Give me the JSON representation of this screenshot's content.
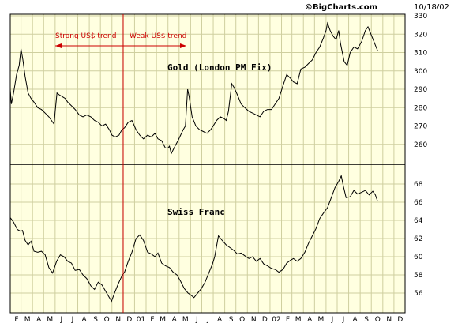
{
  "header": {
    "watermark": "©BigCharts.com",
    "date": "10/18/02"
  },
  "colors": {
    "panel_bg": "#ffffe0",
    "grid": "#cfcf9f",
    "line": "#000000",
    "annotation": "#cc0000",
    "watermark": "#8a8a8a"
  },
  "annotations": {
    "strong": "Strong US$ trend",
    "weak": "Weak US$ trend"
  },
  "x_tick_labels": [
    "F",
    "M",
    "A",
    "M",
    "J",
    "J",
    "A",
    "S",
    "O",
    "N",
    "D",
    "01",
    "F",
    "M",
    "A",
    "M",
    "J",
    "J",
    "A",
    "S",
    "O",
    "N",
    "D",
    "02",
    "F",
    "M",
    "A",
    "M",
    "J",
    "J",
    "A",
    "S",
    "O",
    "N",
    "D"
  ],
  "chart_data": [
    {
      "type": "line",
      "title": "Gold (London PM Fix)",
      "ylim": [
        250,
        330
      ],
      "yticks": [
        260,
        270,
        280,
        290,
        300,
        310,
        320,
        330
      ],
      "x_start": "2000-02-01",
      "x_end": "2002-12-31",
      "series": [
        {
          "name": "",
          "values": [
            [
              "2000-02-01",
              290
            ],
            [
              "2000-02-04",
              282
            ],
            [
              "2000-02-10",
              288
            ],
            [
              "2000-02-18",
              298
            ],
            [
              "2000-02-25",
              303
            ],
            [
              "2000-03-01",
              312
            ],
            [
              "2000-03-06",
              306
            ],
            [
              "2000-03-12",
              297
            ],
            [
              "2000-03-20",
              288
            ],
            [
              "2000-03-28",
              285
            ],
            [
              "2000-04-05",
              283
            ],
            [
              "2000-04-15",
              280
            ],
            [
              "2000-04-25",
              279
            ],
            [
              "2000-05-05",
              277
            ],
            [
              "2000-05-15",
              275
            ],
            [
              "2000-05-22",
              273
            ],
            [
              "2000-05-29",
              271
            ],
            [
              "2000-06-01",
              278
            ],
            [
              "2000-06-06",
              288
            ],
            [
              "2000-06-12",
              287
            ],
            [
              "2000-06-20",
              286
            ],
            [
              "2000-06-28",
              285
            ],
            [
              "2000-07-05",
              283
            ],
            [
              "2000-07-15",
              281
            ],
            [
              "2000-07-25",
              279
            ],
            [
              "2000-08-05",
              276
            ],
            [
              "2000-08-15",
              275
            ],
            [
              "2000-08-25",
              276
            ],
            [
              "2000-09-05",
              275
            ],
            [
              "2000-09-15",
              273
            ],
            [
              "2000-09-25",
              272
            ],
            [
              "2000-10-05",
              270
            ],
            [
              "2000-10-15",
              271
            ],
            [
              "2000-10-25",
              268
            ],
            [
              "2000-11-01",
              265
            ],
            [
              "2000-11-10",
              264
            ],
            [
              "2000-11-20",
              265
            ],
            [
              "2000-11-28",
              268
            ],
            [
              "2000-12-05",
              269
            ],
            [
              "2000-12-15",
              272
            ],
            [
              "2000-12-25",
              273
            ],
            [
              "2001-01-05",
              268
            ],
            [
              "2001-01-15",
              265
            ],
            [
              "2001-01-25",
              263
            ],
            [
              "2001-02-05",
              265
            ],
            [
              "2001-02-15",
              264
            ],
            [
              "2001-02-25",
              266
            ],
            [
              "2001-03-05",
              263
            ],
            [
              "2001-03-15",
              262
            ],
            [
              "2001-03-25",
              258
            ],
            [
              "2001-04-01",
              258
            ],
            [
              "2001-04-05",
              259
            ],
            [
              "2001-04-10",
              255
            ],
            [
              "2001-04-20",
              259
            ],
            [
              "2001-04-28",
              262
            ],
            [
              "2001-05-05",
              265
            ],
            [
              "2001-05-12",
              268
            ],
            [
              "2001-05-18",
              270
            ],
            [
              "2001-05-24",
              290
            ],
            [
              "2001-05-28",
              286
            ],
            [
              "2001-06-05",
              275
            ],
            [
              "2001-06-15",
              270
            ],
            [
              "2001-06-25",
              268
            ],
            [
              "2001-07-05",
              267
            ],
            [
              "2001-07-15",
              266
            ],
            [
              "2001-07-25",
              268
            ],
            [
              "2001-08-01",
              270
            ],
            [
              "2001-08-10",
              273
            ],
            [
              "2001-08-20",
              275
            ],
            [
              "2001-08-30",
              274
            ],
            [
              "2001-09-05",
              273
            ],
            [
              "2001-09-11",
              278
            ],
            [
              "2001-09-17",
              288
            ],
            [
              "2001-09-20",
              293
            ],
            [
              "2001-09-26",
              291
            ],
            [
              "2001-10-05",
              287
            ],
            [
              "2001-10-15",
              282
            ],
            [
              "2001-10-25",
              280
            ],
            [
              "2001-11-05",
              278
            ],
            [
              "2001-11-15",
              277
            ],
            [
              "2001-11-25",
              276
            ],
            [
              "2001-12-05",
              275
            ],
            [
              "2001-12-15",
              278
            ],
            [
              "2001-12-25",
              279
            ],
            [
              "2002-01-05",
              279
            ],
            [
              "2002-01-15",
              282
            ],
            [
              "2002-01-25",
              285
            ],
            [
              "2002-02-05",
              292
            ],
            [
              "2002-02-15",
              298
            ],
            [
              "2002-02-25",
              296
            ],
            [
              "2002-03-05",
              294
            ],
            [
              "2002-03-15",
              293
            ],
            [
              "2002-03-25",
              301
            ],
            [
              "2002-04-05",
              302
            ],
            [
              "2002-04-15",
              304
            ],
            [
              "2002-04-25",
              306
            ],
            [
              "2002-05-05",
              310
            ],
            [
              "2002-05-15",
              313
            ],
            [
              "2002-05-25",
              318
            ],
            [
              "2002-06-01",
              322
            ],
            [
              "2002-06-05",
              326
            ],
            [
              "2002-06-12",
              322
            ],
            [
              "2002-06-20",
              319
            ],
            [
              "2002-06-28",
              317
            ],
            [
              "2002-07-05",
              322
            ],
            [
              "2002-07-10",
              315
            ],
            [
              "2002-07-20",
              305
            ],
            [
              "2002-07-28",
              303
            ],
            [
              "2002-08-05",
              310
            ],
            [
              "2002-08-15",
              313
            ],
            [
              "2002-08-25",
              312
            ],
            [
              "2002-09-05",
              316
            ],
            [
              "2002-09-15",
              322
            ],
            [
              "2002-09-22",
              324
            ],
            [
              "2002-09-30",
              320
            ],
            [
              "2002-10-08",
              316
            ],
            [
              "2002-10-18",
              311
            ]
          ]
        }
      ]
    },
    {
      "type": "line",
      "title": "Swiss Franc",
      "ylim": [
        54,
        70
      ],
      "yticks": [
        56,
        58,
        60,
        62,
        64,
        66,
        68
      ],
      "x_start": "2000-02-01",
      "x_end": "2002-12-31",
      "series": [
        {
          "name": "",
          "values": [
            [
              "2000-02-01",
              64.3
            ],
            [
              "2000-02-10",
              63.8
            ],
            [
              "2000-02-20",
              63.0
            ],
            [
              "2000-02-29",
              62.8
            ],
            [
              "2000-03-05",
              62.9
            ],
            [
              "2000-03-12",
              61.8
            ],
            [
              "2000-03-20",
              61.3
            ],
            [
              "2000-03-28",
              61.7
            ],
            [
              "2000-04-05",
              60.6
            ],
            [
              "2000-04-15",
              60.5
            ],
            [
              "2000-04-25",
              60.6
            ],
            [
              "2000-05-05",
              60.2
            ],
            [
              "2000-05-15",
              58.8
            ],
            [
              "2000-05-25",
              58.2
            ],
            [
              "2000-06-05",
              59.5
            ],
            [
              "2000-06-15",
              60.2
            ],
            [
              "2000-06-25",
              60.0
            ],
            [
              "2000-07-05",
              59.5
            ],
            [
              "2000-07-15",
              59.3
            ],
            [
              "2000-07-25",
              58.5
            ],
            [
              "2000-08-05",
              58.6
            ],
            [
              "2000-08-15",
              58.0
            ],
            [
              "2000-08-25",
              57.6
            ],
            [
              "2000-09-05",
              56.8
            ],
            [
              "2000-09-15",
              56.4
            ],
            [
              "2000-09-25",
              57.2
            ],
            [
              "2000-10-05",
              56.9
            ],
            [
              "2000-10-15",
              56.2
            ],
            [
              "2000-10-25",
              55.5
            ],
            [
              "2000-10-31",
              55.1
            ],
            [
              "2000-11-08",
              56.0
            ],
            [
              "2000-11-18",
              57.0
            ],
            [
              "2000-11-28",
              57.9
            ],
            [
              "2000-12-05",
              58.3
            ],
            [
              "2000-12-15",
              59.5
            ],
            [
              "2000-12-25",
              60.5
            ],
            [
              "2001-01-05",
              62.0
            ],
            [
              "2001-01-15",
              62.4
            ],
            [
              "2001-01-25",
              61.8
            ],
            [
              "2001-02-05",
              60.5
            ],
            [
              "2001-02-15",
              60.3
            ],
            [
              "2001-02-25",
              60.0
            ],
            [
              "2001-03-05",
              60.4
            ],
            [
              "2001-03-15",
              59.3
            ],
            [
              "2001-03-25",
              59.0
            ],
            [
              "2001-04-05",
              58.8
            ],
            [
              "2001-04-15",
              58.3
            ],
            [
              "2001-04-25",
              58.0
            ],
            [
              "2001-05-05",
              57.3
            ],
            [
              "2001-05-15",
              56.5
            ],
            [
              "2001-05-25",
              56.0
            ],
            [
              "2001-06-01",
              55.8
            ],
            [
              "2001-06-10",
              55.5
            ],
            [
              "2001-06-20",
              56.0
            ],
            [
              "2001-06-30",
              56.5
            ],
            [
              "2001-07-10",
              57.2
            ],
            [
              "2001-07-20",
              58.2
            ],
            [
              "2001-07-30",
              59.2
            ],
            [
              "2001-08-05",
              60.0
            ],
            [
              "2001-08-15",
              62.3
            ],
            [
              "2001-08-25",
              61.8
            ],
            [
              "2001-09-05",
              61.3
            ],
            [
              "2001-09-15",
              61.0
            ],
            [
              "2001-09-25",
              60.7
            ],
            [
              "2001-10-05",
              60.3
            ],
            [
              "2001-10-15",
              60.4
            ],
            [
              "2001-10-25",
              60.1
            ],
            [
              "2001-11-05",
              59.8
            ],
            [
              "2001-11-15",
              60.0
            ],
            [
              "2001-11-25",
              59.5
            ],
            [
              "2001-12-05",
              59.8
            ],
            [
              "2001-12-15",
              59.2
            ],
            [
              "2001-12-25",
              59.0
            ],
            [
              "2002-01-05",
              58.7
            ],
            [
              "2002-01-15",
              58.6
            ],
            [
              "2002-01-25",
              58.3
            ],
            [
              "2002-02-05",
              58.6
            ],
            [
              "2002-02-15",
              59.3
            ],
            [
              "2002-02-25",
              59.6
            ],
            [
              "2002-03-05",
              59.8
            ],
            [
              "2002-03-15",
              59.5
            ],
            [
              "2002-03-25",
              59.8
            ],
            [
              "2002-04-05",
              60.5
            ],
            [
              "2002-04-15",
              61.5
            ],
            [
              "2002-04-25",
              62.3
            ],
            [
              "2002-05-05",
              63.1
            ],
            [
              "2002-05-15",
              64.2
            ],
            [
              "2002-05-25",
              64.8
            ],
            [
              "2002-06-05",
              65.4
            ],
            [
              "2002-06-15",
              66.5
            ],
            [
              "2002-06-25",
              67.6
            ],
            [
              "2002-07-05",
              68.3
            ],
            [
              "2002-07-12",
              68.9
            ],
            [
              "2002-07-18",
              67.7
            ],
            [
              "2002-07-25",
              66.5
            ],
            [
              "2002-08-05",
              66.6
            ],
            [
              "2002-08-15",
              67.3
            ],
            [
              "2002-08-25",
              66.9
            ],
            [
              "2002-09-05",
              67.1
            ],
            [
              "2002-09-15",
              67.3
            ],
            [
              "2002-09-25",
              66.8
            ],
            [
              "2002-10-05",
              67.2
            ],
            [
              "2002-10-12",
              66.8
            ],
            [
              "2002-10-18",
              66.1
            ]
          ]
        }
      ]
    }
  ]
}
